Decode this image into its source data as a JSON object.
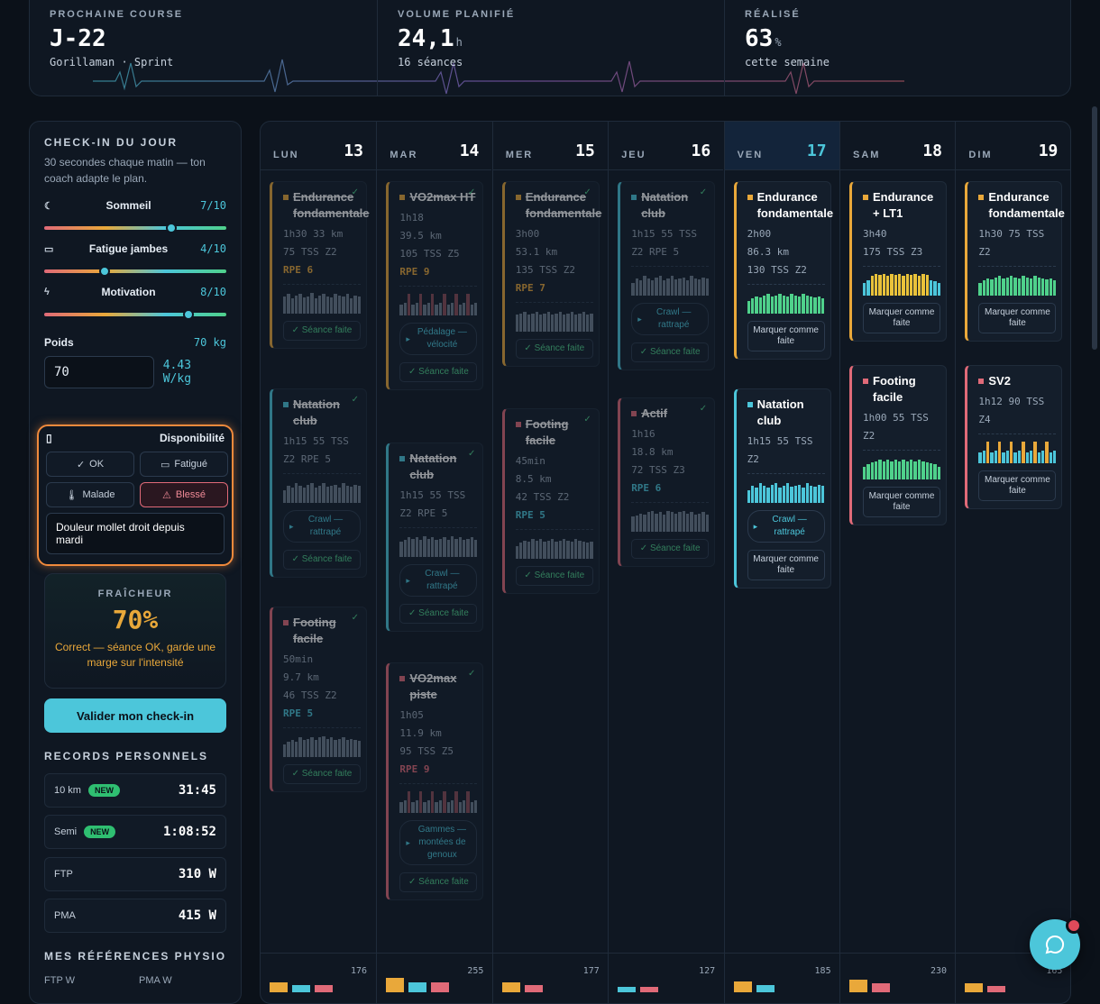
{
  "stats": [
    {
      "label": "PROCHAINE COURSE",
      "value": "J-22",
      "unit": "",
      "sub": "Gorillaman · Sprint"
    },
    {
      "label": "VOLUME PLANIFIÉ",
      "value": "24,1",
      "unit": "h",
      "sub": "16 séances"
    },
    {
      "label": "RÉALISÉ",
      "value": "63",
      "unit": "%",
      "sub": "cette semaine"
    }
  ],
  "checkin": {
    "title": "CHECK-IN DU JOUR",
    "subtitle": "30 secondes chaque matin — ton coach adapte le plan.",
    "sliders": [
      {
        "icon": "moon-icon",
        "glyph": "☾",
        "label": "Sommeil",
        "value": "7/10",
        "level": 0.7
      },
      {
        "icon": "battery-icon",
        "glyph": "▭",
        "label": "Fatigue jambes",
        "value": "4/10",
        "level": 0.33
      },
      {
        "icon": "bolt-icon",
        "glyph": "ϟ",
        "label": "Motivation",
        "value": "8/10",
        "level": 0.79
      }
    ],
    "poids_label": "Poids",
    "poids_value": "70 kg",
    "poids_input": "70",
    "wkg": "4.43 W/kg",
    "dispo_label": "Disponibilité",
    "dispo_options": [
      {
        "glyph": "✓",
        "label": "OK"
      },
      {
        "glyph": "▭",
        "label": "Fatigué"
      },
      {
        "glyph": "🌡",
        "label": "Malade"
      },
      {
        "glyph": "⚠",
        "label": "Blessé"
      }
    ],
    "dispo_note": "Douleur mollet droit depuis mardi",
    "fraicheur_title": "FRAÎCHEUR",
    "fraicheur_value": "70%",
    "fraicheur_desc": "Correct — séance OK, garde une marge sur l'intensité",
    "validate": "Valider mon check-in"
  },
  "records": {
    "title": "RECORDS PERSONNELS",
    "items": [
      {
        "label": "10 km",
        "badge": "NEW",
        "value": "31:45"
      },
      {
        "label": "Semi",
        "badge": "NEW",
        "value": "1:08:52"
      },
      {
        "label": "FTP",
        "badge": "",
        "value": "310 W"
      },
      {
        "label": "PMA",
        "badge": "",
        "value": "415 W"
      }
    ]
  },
  "physio": {
    "title": "MES RÉFÉRENCES PHYSIO",
    "labels": [
      "FTP W",
      "PMA W"
    ]
  },
  "colors": {
    "run": "#e9a83a",
    "swim": "#4cc6da",
    "bike": "#e06a78",
    "ok": "#4fd18b",
    "accent": "#f08a3c"
  },
  "days": [
    {
      "name": "LUN",
      "date": "13",
      "total": "176",
      "cards": [
        {
          "title": "Endurance fondamentale",
          "sport": "run",
          "done": true,
          "lines": [
            "1h30 33 km",
            "75 TSS Z2"
          ],
          "rpe": "RPE 6",
          "pill": "",
          "button": "✓ Séance faite",
          "bars": [
            0.8,
            0.9,
            0.7,
            0.85,
            0.9,
            0.75,
            0.8,
            0.95,
            0.7,
            0.85,
            0.9,
            0.8,
            0.75,
            0.9,
            0.85,
            0.8,
            0.9,
            0.7,
            0.85,
            0.8
          ]
        },
        {
          "title": "Natation club",
          "sport": "swim",
          "done": true,
          "lines": [
            "1h15 55 TSS",
            "Z2 RPE 5"
          ],
          "rpe": "",
          "pill": "Crawl — rattrapé",
          "button": "✓ Séance faite",
          "bars": [
            0.6,
            0.8,
            0.7,
            0.9,
            0.8,
            0.7,
            0.85,
            0.9,
            0.7,
            0.8,
            0.9,
            0.75,
            0.8,
            0.85,
            0.7,
            0.9,
            0.8,
            0.75,
            0.85,
            0.8
          ]
        },
        {
          "title": "Footing facile",
          "sport": "bike",
          "done": true,
          "lines": [
            "50min",
            "9.7 km",
            "46 TSS Z2"
          ],
          "rpe": "RPE 5",
          "pill": "",
          "button": "✓ Séance faite",
          "bars": [
            0.6,
            0.7,
            0.8,
            0.7,
            0.9,
            0.8,
            0.85,
            0.9,
            0.8,
            0.9,
            0.95,
            0.85,
            0.9,
            0.8,
            0.85,
            0.9,
            0.8,
            0.85,
            0.8,
            0.75
          ]
        }
      ]
    },
    {
      "name": "MAR",
      "date": "14",
      "total": "255",
      "cards": [
        {
          "title": "VO2max HT",
          "sport": "run",
          "done": true,
          "lines": [
            "1h18",
            "39.5 km",
            "105 TSS Z5"
          ],
          "rpe": "RPE 9",
          "pill": "Pédalage — vélocité",
          "button": "✓ Séance faite",
          "bars": [
            0.5,
            0.6,
            1,
            0.5,
            0.6,
            1,
            0.5,
            0.6,
            1,
            0.5,
            0.6,
            1,
            0.5,
            0.6,
            1,
            0.5,
            0.6,
            1,
            0.5,
            0.6
          ]
        },
        {
          "title": "Natation club",
          "sport": "swim",
          "done": true,
          "lines": [
            "1h15 55 TSS",
            "Z2 RPE 5"
          ],
          "rpe": "",
          "pill": "Crawl — rattrapé",
          "button": "✓ Séance faite",
          "bars": [
            0.7,
            0.8,
            0.9,
            0.85,
            0.9,
            0.8,
            0.95,
            0.85,
            0.9,
            0.8,
            0.85,
            0.9,
            0.8,
            0.95,
            0.85,
            0.9,
            0.8,
            0.85,
            0.9,
            0.8
          ]
        },
        {
          "title": "VO2max piste",
          "sport": "bike",
          "done": true,
          "lines": [
            "1h05",
            "11.9 km",
            "95 TSS Z5"
          ],
          "rpe": "RPE 9",
          "pill": "Gammes — montées de genoux",
          "button": "✓ Séance faite",
          "bars": [
            0.5,
            0.6,
            1,
            0.5,
            0.6,
            1,
            0.5,
            0.6,
            1,
            0.5,
            0.6,
            1,
            0.5,
            0.6,
            1,
            0.5,
            0.6,
            1,
            0.5,
            0.6
          ]
        }
      ]
    },
    {
      "name": "MER",
      "date": "15",
      "total": "177",
      "cards": [
        {
          "title": "Endurance fondamentale",
          "sport": "run",
          "done": true,
          "lines": [
            "3h00",
            "53.1 km",
            "135 TSS Z2"
          ],
          "rpe": "RPE 7",
          "pill": "",
          "button": "✓ Séance faite",
          "bars": [
            0.8,
            0.85,
            0.9,
            0.8,
            0.85,
            0.9,
            0.8,
            0.85,
            0.9,
            0.8,
            0.85,
            0.9,
            0.8,
            0.85,
            0.9,
            0.8,
            0.85,
            0.9,
            0.8,
            0.85
          ]
        },
        {
          "title": "Footing facile",
          "sport": "bike",
          "done": true,
          "lines": [
            "45min",
            "8.5 km",
            "42 TSS Z2"
          ],
          "rpe": "RPE 5",
          "pill": "",
          "button": "✓ Séance faite",
          "bars": [
            0.6,
            0.75,
            0.85,
            0.8,
            0.9,
            0.85,
            0.9,
            0.8,
            0.85,
            0.9,
            0.8,
            0.85,
            0.9,
            0.85,
            0.8,
            0.9,
            0.85,
            0.8,
            0.75,
            0.8
          ]
        }
      ]
    },
    {
      "name": "JEU",
      "date": "16",
      "total": "127",
      "cards": [
        {
          "title": "Natation club",
          "sport": "swim",
          "done": true,
          "lines": [
            "1h15 55 TSS",
            "Z2 RPE 5"
          ],
          "rpe": "",
          "pill": "Crawl — rattrapé",
          "button": "✓ Séance faite",
          "bars": [
            0.6,
            0.8,
            0.7,
            0.9,
            0.8,
            0.7,
            0.85,
            0.9,
            0.7,
            0.8,
            0.9,
            0.75,
            0.8,
            0.85,
            0.7,
            0.9,
            0.8,
            0.75,
            0.85,
            0.8
          ]
        },
        {
          "title": "Actif",
          "sport": "bike",
          "done": true,
          "lines": [
            "1h16",
            "18.8 km",
            "72 TSS Z3"
          ],
          "rpe": "RPE 6",
          "pill": "",
          "button": "✓ Séance faite",
          "bars": [
            0.7,
            0.75,
            0.85,
            0.8,
            0.9,
            0.95,
            0.85,
            0.9,
            0.8,
            0.95,
            0.9,
            0.85,
            0.9,
            0.95,
            0.85,
            0.9,
            0.8,
            0.85,
            0.9,
            0.8
          ]
        }
      ]
    },
    {
      "name": "VEN",
      "date": "17",
      "total": "185",
      "today": true,
      "cards": [
        {
          "title": "Endurance fondamentale",
          "sport": "run",
          "done": false,
          "lines": [
            "2h00",
            "86.3 km",
            "130 TSS Z2"
          ],
          "rpe": "",
          "pill": "",
          "button": "Marquer comme faite",
          "bars": [
            0.6,
            0.7,
            0.8,
            0.75,
            0.85,
            0.9,
            0.8,
            0.85,
            0.9,
            0.85,
            0.8,
            0.9,
            0.85,
            0.8,
            0.9,
            0.85,
            0.8,
            0.75,
            0.8,
            0.7
          ]
        },
        {
          "title": "Natation club",
          "sport": "swim",
          "done": false,
          "lines": [
            "1h15 55 TSS",
            "Z2"
          ],
          "rpe": "",
          "pill": "Crawl — rattrapé",
          "button": "Marquer comme faite",
          "bars": [
            0.6,
            0.8,
            0.7,
            0.9,
            0.8,
            0.7,
            0.85,
            0.9,
            0.7,
            0.8,
            0.9,
            0.75,
            0.8,
            0.85,
            0.7,
            0.9,
            0.8,
            0.75,
            0.85,
            0.8
          ]
        }
      ]
    },
    {
      "name": "SAM",
      "date": "18",
      "total": "230",
      "cards": [
        {
          "title": "Endurance + LT1",
          "sport": "run",
          "done": false,
          "lines": [
            "3h40",
            "175 TSS Z3"
          ],
          "rpe": "",
          "pill": "",
          "button": "Marquer comme faite",
          "bars": [
            0.6,
            0.7,
            0.9,
            1,
            0.95,
            1,
            0.9,
            1,
            0.95,
            1,
            0.9,
            1,
            0.95,
            1,
            0.9,
            1,
            0.95,
            0.7,
            0.65,
            0.6
          ]
        },
        {
          "title": "Footing facile",
          "sport": "bike",
          "done": false,
          "lines": [
            "1h00 55 TSS",
            "Z2"
          ],
          "rpe": "",
          "pill": "",
          "button": "Marquer comme faite",
          "bars": [
            0.6,
            0.7,
            0.8,
            0.85,
            0.9,
            0.85,
            0.9,
            0.85,
            0.9,
            0.85,
            0.9,
            0.85,
            0.9,
            0.85,
            0.9,
            0.85,
            0.8,
            0.75,
            0.7,
            0.6
          ]
        }
      ]
    },
    {
      "name": "DIM",
      "date": "19",
      "total": "165",
      "cards": [
        {
          "title": "Endurance fondamentale",
          "sport": "run",
          "done": false,
          "lines": [
            "1h30 75 TSS",
            "Z2"
          ],
          "rpe": "",
          "pill": "",
          "button": "Marquer comme faite",
          "bars": [
            0.6,
            0.7,
            0.8,
            0.75,
            0.85,
            0.9,
            0.8,
            0.85,
            0.9,
            0.85,
            0.8,
            0.9,
            0.85,
            0.8,
            0.9,
            0.85,
            0.8,
            0.75,
            0.8,
            0.7
          ]
        },
        {
          "title": "SV2",
          "sport": "bike",
          "done": false,
          "lines": [
            "1h12 90 TSS",
            "Z4"
          ],
          "rpe": "",
          "pill": "",
          "button": "Marquer comme faite",
          "bars": [
            0.5,
            0.6,
            1,
            0.5,
            0.6,
            1,
            0.5,
            0.6,
            1,
            0.5,
            0.6,
            1,
            0.5,
            0.6,
            1,
            0.5,
            0.6,
            1,
            0.5,
            0.6
          ]
        }
      ]
    }
  ]
}
